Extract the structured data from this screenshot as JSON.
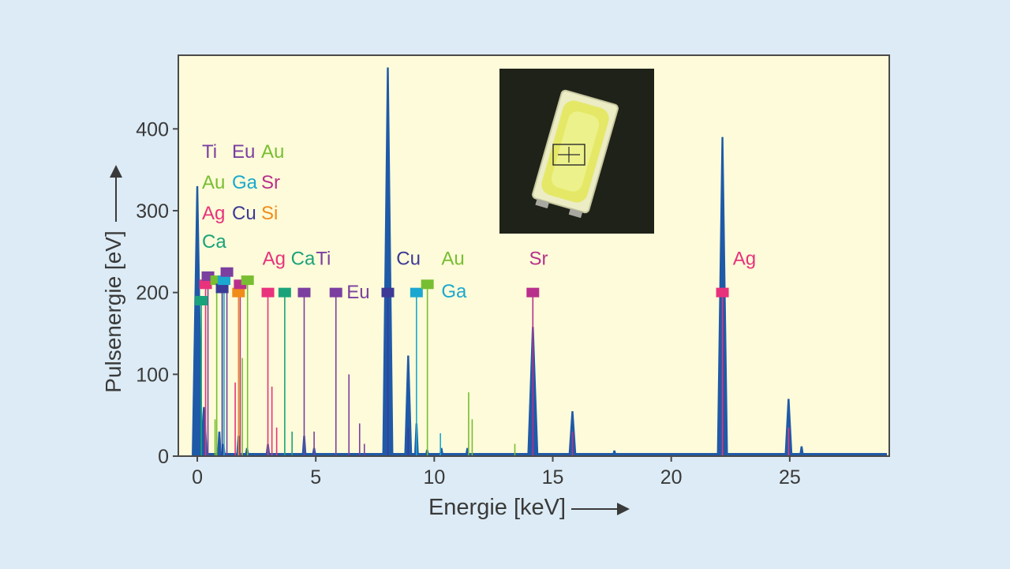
{
  "chart_data": {
    "type": "line",
    "title": "",
    "xlabel": "Energie [keV]",
    "ylabel": "Pulsenergie [eV]",
    "xlim": [
      -0.8,
      29.2
    ],
    "ylim": [
      0,
      490
    ],
    "x_ticks": [
      0,
      5,
      10,
      15,
      20,
      25
    ],
    "y_ticks": [
      0,
      100,
      200,
      300,
      400
    ],
    "grid": false,
    "legend": "top-left",
    "colors": {
      "background": "#dcebf5",
      "plot_bg": "#fdfbd9",
      "spectrum": "#1f5aa8",
      "Ti": "#7b3fa0",
      "Eu": "#7b3fa0",
      "Au": "#78be32",
      "Ga": "#1ba8d0",
      "Sr": "#b8308c",
      "Ag": "#e8327c",
      "Cu": "#3c3a96",
      "Si": "#f08c1a",
      "Ca": "#1aa37a"
    },
    "legend_items": [
      [
        {
          "t": "Ti",
          "el": "Ti"
        },
        {
          "t": "Eu",
          "el": "Eu"
        },
        {
          "t": "Au",
          "el": "Au"
        }
      ],
      [
        {
          "t": "Au",
          "el": "Au"
        },
        {
          "t": "Ga",
          "el": "Ga"
        },
        {
          "t": "Sr",
          "el": "Sr"
        }
      ],
      [
        {
          "t": "Ag",
          "el": "Ag"
        },
        {
          "t": "Cu",
          "el": "Cu"
        },
        {
          "t": "Si",
          "el": "Si"
        }
      ],
      [
        {
          "t": "Ca",
          "el": "Ca"
        }
      ]
    ],
    "spectrum_peaks": [
      {
        "x": 0.0,
        "y": 330
      },
      {
        "x": 0.28,
        "y": 60
      },
      {
        "x": 0.93,
        "y": 30
      },
      {
        "x": 1.1,
        "y": 15
      },
      {
        "x": 1.74,
        "y": 25
      },
      {
        "x": 2.1,
        "y": 10
      },
      {
        "x": 2.98,
        "y": 15
      },
      {
        "x": 4.51,
        "y": 25
      },
      {
        "x": 4.93,
        "y": 10
      },
      {
        "x": 8.04,
        "y": 475
      },
      {
        "x": 8.9,
        "y": 123
      },
      {
        "x": 9.25,
        "y": 40
      },
      {
        "x": 9.7,
        "y": 8
      },
      {
        "x": 10.3,
        "y": 10
      },
      {
        "x": 11.4,
        "y": 10
      },
      {
        "x": 14.16,
        "y": 158
      },
      {
        "x": 15.83,
        "y": 55
      },
      {
        "x": 17.6,
        "y": 7
      },
      {
        "x": 22.16,
        "y": 390
      },
      {
        "x": 24.95,
        "y": 70
      },
      {
        "x": 25.5,
        "y": 12
      }
    ],
    "element_lines": [
      {
        "x": 0.17,
        "y": 190,
        "el": "Ca"
      },
      {
        "x": 0.35,
        "y": 210,
        "el": "Ag"
      },
      {
        "x": 0.45,
        "y": 220,
        "el": "Ti"
      },
      {
        "x": 0.82,
        "y": 215,
        "el": "Au"
      },
      {
        "x": 1.05,
        "y": 205,
        "el": "Cu"
      },
      {
        "x": 1.13,
        "y": 215,
        "el": "Ga"
      },
      {
        "x": 1.25,
        "y": 225,
        "el": "Eu"
      },
      {
        "x": 1.74,
        "y": 200,
        "el": "Si"
      },
      {
        "x": 1.81,
        "y": 210,
        "el": "Sr"
      },
      {
        "x": 2.12,
        "y": 215,
        "el": "Au"
      },
      {
        "x": 2.98,
        "y": 200,
        "el": "Ag"
      },
      {
        "x": 3.69,
        "y": 200,
        "el": "Ca"
      },
      {
        "x": 4.51,
        "y": 200,
        "el": "Ti"
      },
      {
        "x": 5.85,
        "y": 200,
        "el": "Eu"
      },
      {
        "x": 8.04,
        "y": 200,
        "el": "Cu"
      },
      {
        "x": 9.25,
        "y": 200,
        "el": "Ga"
      },
      {
        "x": 9.71,
        "y": 210,
        "el": "Au"
      },
      {
        "x": 14.16,
        "y": 200,
        "el": "Sr"
      },
      {
        "x": 22.16,
        "y": 200,
        "el": "Ag"
      }
    ],
    "minor_lines": [
      {
        "x": 0.75,
        "y": 45,
        "el": "Au"
      },
      {
        "x": 1.6,
        "y": 90,
        "el": "Ag"
      },
      {
        "x": 1.9,
        "y": 120,
        "el": "Au"
      },
      {
        "x": 3.15,
        "y": 85,
        "el": "Ag"
      },
      {
        "x": 3.35,
        "y": 35,
        "el": "Ag"
      },
      {
        "x": 4.0,
        "y": 30,
        "el": "Ca"
      },
      {
        "x": 4.93,
        "y": 30,
        "el": "Ti"
      },
      {
        "x": 6.4,
        "y": 100,
        "el": "Eu"
      },
      {
        "x": 6.85,
        "y": 40,
        "el": "Eu"
      },
      {
        "x": 7.05,
        "y": 15,
        "el": "Eu"
      },
      {
        "x": 8.9,
        "y": 35,
        "el": "Cu"
      },
      {
        "x": 10.26,
        "y": 28,
        "el": "Ga"
      },
      {
        "x": 11.45,
        "y": 78,
        "el": "Au"
      },
      {
        "x": 11.6,
        "y": 45,
        "el": "Au"
      },
      {
        "x": 13.4,
        "y": 15,
        "el": "Au"
      },
      {
        "x": 15.83,
        "y": 30,
        "el": "Sr"
      },
      {
        "x": 24.95,
        "y": 35,
        "el": "Ag"
      }
    ],
    "annotations": [
      {
        "text": "Ag",
        "x": 2.75,
        "y": 234,
        "el": "Ag"
      },
      {
        "text": "Ca",
        "x": 3.95,
        "y": 234,
        "el": "Ca"
      },
      {
        "text": "Ti",
        "x": 5.0,
        "y": 234,
        "el": "Ti"
      },
      {
        "text": "Eu",
        "x": 6.3,
        "y": 193,
        "el": "Eu"
      },
      {
        "text": "Cu",
        "x": 8.4,
        "y": 234,
        "el": "Cu"
      },
      {
        "text": "Au",
        "x": 10.3,
        "y": 234,
        "el": "Au"
      },
      {
        "text": "Ga",
        "x": 10.3,
        "y": 194,
        "el": "Ga"
      },
      {
        "text": "Sr",
        "x": 14.0,
        "y": 234,
        "el": "Sr"
      },
      {
        "text": "Ag",
        "x": 22.6,
        "y": 234,
        "el": "Ag"
      }
    ]
  }
}
